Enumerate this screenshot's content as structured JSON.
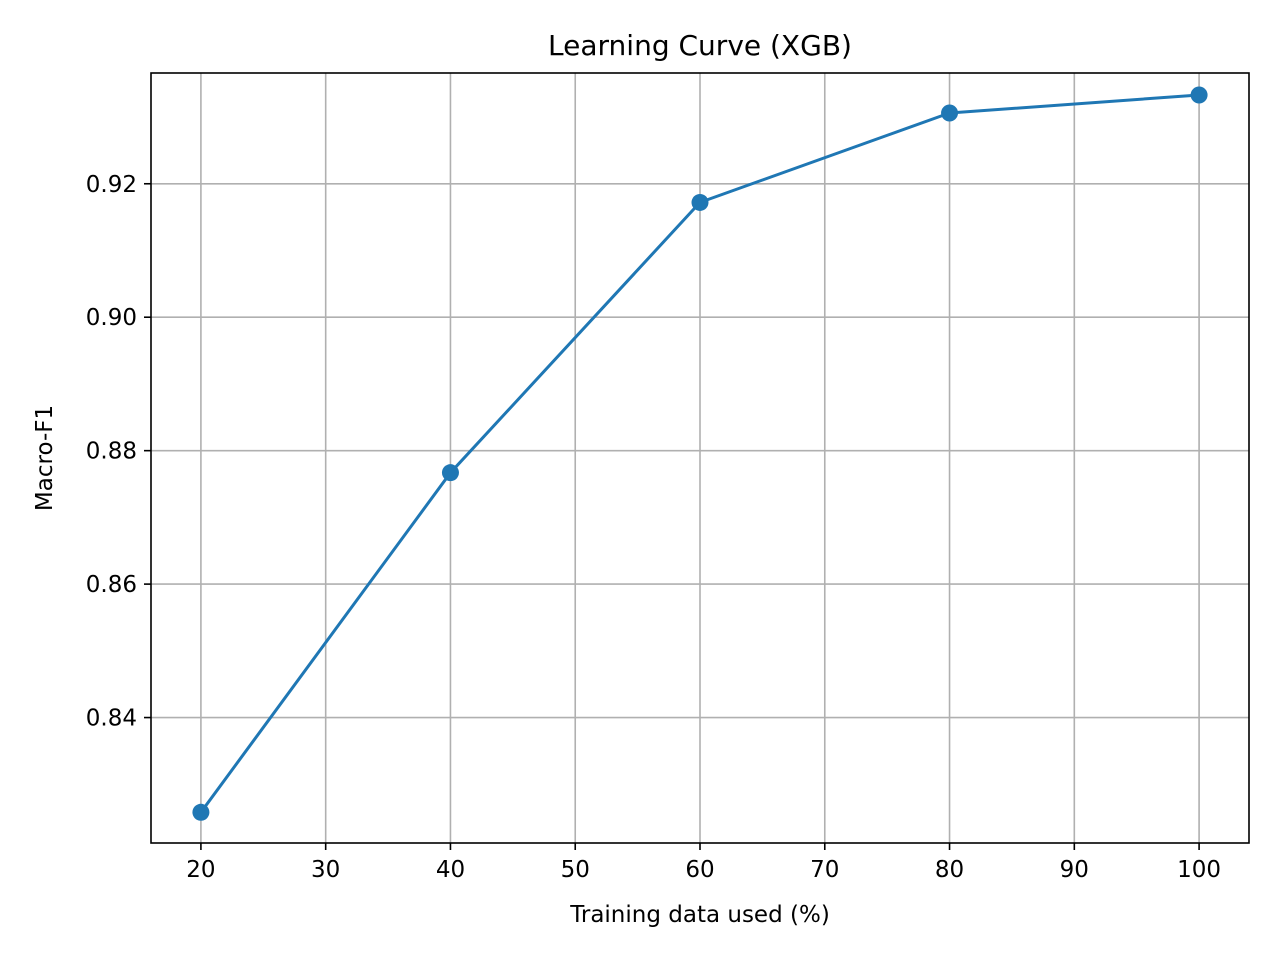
{
  "chart_data": {
    "type": "line",
    "title": "Learning Curve (XGB)",
    "xlabel": "Training data used (%)",
    "ylabel": "Macro-F1",
    "xlim": [
      16,
      104
    ],
    "ylim": [
      0.8212,
      0.9366
    ],
    "x_ticks": [
      20,
      30,
      40,
      50,
      60,
      70,
      80,
      90,
      100
    ],
    "y_ticks": [
      0.84,
      0.86,
      0.88,
      0.9,
      0.92
    ],
    "y_tick_labels": [
      "0.84",
      "0.86",
      "0.88",
      "0.90",
      "0.92"
    ],
    "grid": true,
    "series": [
      {
        "color": "#1f77b4",
        "marker": "circle",
        "x": [
          20,
          40,
          60,
          80,
          100
        ],
        "y": [
          0.8258,
          0.8767,
          0.9172,
          0.9306,
          0.9333
        ]
      }
    ]
  }
}
